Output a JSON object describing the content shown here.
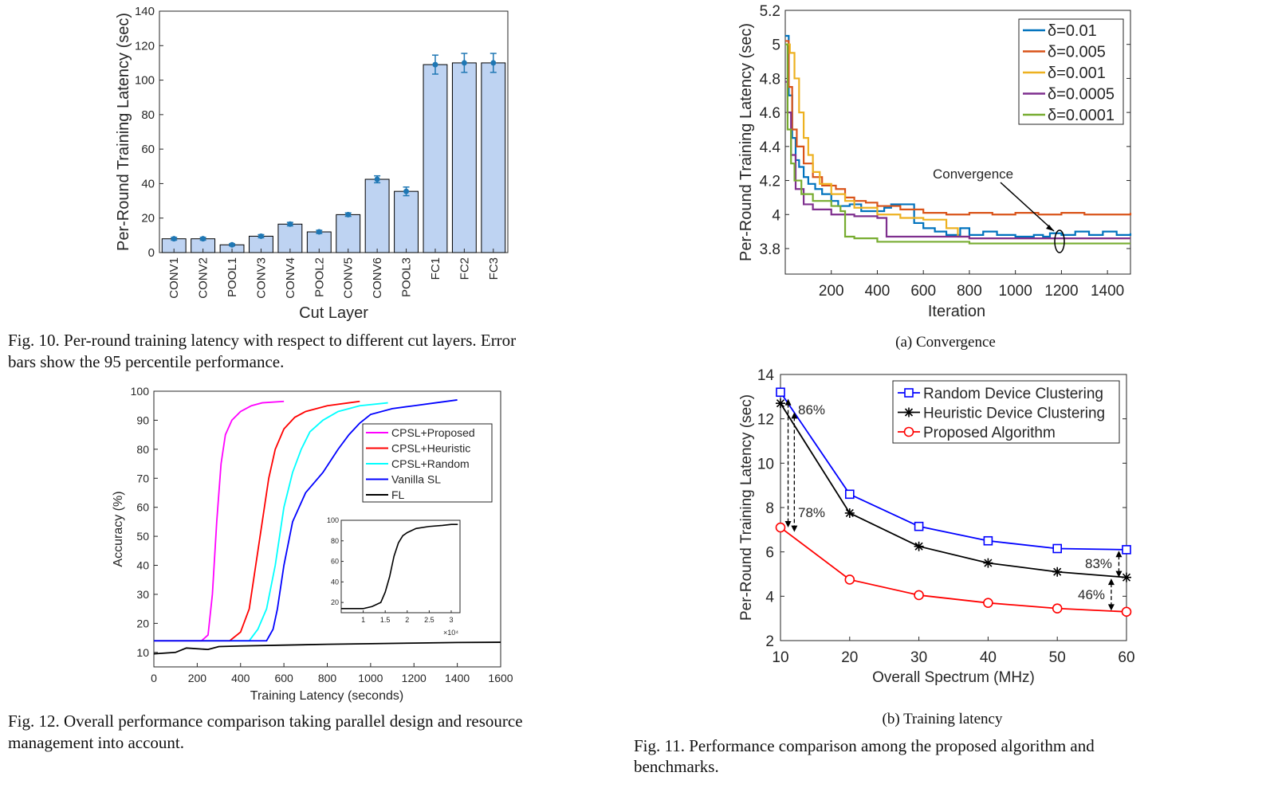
{
  "captions": {
    "fig10": [
      "Fig. 10.   Per-round training latency with respect to different cut layers. Error",
      "bars show the 95 percentile performance."
    ],
    "fig12": [
      "Fig. 12.   Overall performance comparison taking parallel design and resource",
      "management into account."
    ],
    "fig11a": "(a)  Convergence",
    "fig11b": "(b)  Training latency",
    "fig11": [
      "Fig.  11.      Performance  comparison  among  the  proposed  algorithm  and",
      "benchmarks."
    ]
  },
  "chart_data": [
    {
      "id": "fig10",
      "type": "bar",
      "xlabel": "Cut Layer",
      "ylabel": "Per-Round Training Latency (sec)",
      "ylim": [
        0,
        140
      ],
      "yticks": [
        0,
        20,
        40,
        60,
        80,
        100,
        120,
        140
      ],
      "categories": [
        "CONV1",
        "CONV2",
        "POOL1",
        "CONV3",
        "CONV4",
        "POOL2",
        "CONV5",
        "CONV6",
        "POOL3",
        "FC1",
        "FC2",
        "FC3"
      ],
      "values": [
        8,
        8,
        4.5,
        9.5,
        16.5,
        12,
        22,
        42.5,
        35.5,
        109,
        110,
        110
      ],
      "error": [
        0.8,
        0.8,
        0.6,
        0.9,
        1.0,
        0.9,
        1.0,
        2.0,
        2.5,
        5.5,
        5.5,
        5.5
      ],
      "bar_color": "#bed3f2",
      "error_color": "#1f77b4"
    },
    {
      "id": "fig11a",
      "type": "line",
      "xlabel": "Iteration",
      "ylabel": "Per-Round Training Latency (sec)",
      "xlim": [
        0,
        1500
      ],
      "ylim": [
        3.65,
        5.2
      ],
      "xticks": [
        200,
        400,
        600,
        800,
        1000,
        1200,
        1400
      ],
      "yticks": [
        3.8,
        4,
        4.2,
        4.4,
        4.6,
        4.8,
        5,
        5.2
      ],
      "annotation": "Convergence",
      "series": [
        {
          "name": "δ=0.01",
          "color": "#0072bd",
          "points": [
            [
              0,
              5.05
            ],
            [
              15,
              4.7
            ],
            [
              30,
              4.45
            ],
            [
              45,
              4.32
            ],
            [
              60,
              4.28
            ],
            [
              80,
              4.22
            ],
            [
              100,
              4.18
            ],
            [
              130,
              4.15
            ],
            [
              160,
              4.12
            ],
            [
              200,
              4.08
            ],
            [
              230,
              4.05
            ],
            [
              280,
              4.06
            ],
            [
              330,
              4.02
            ],
            [
              380,
              4.02
            ],
            [
              430,
              4.04
            ],
            [
              460,
              4.06
            ],
            [
              500,
              4.06
            ],
            [
              540,
              4.06
            ],
            [
              560,
              3.95
            ],
            [
              600,
              3.92
            ],
            [
              650,
              3.9
            ],
            [
              700,
              3.88
            ],
            [
              760,
              3.92
            ],
            [
              800,
              3.88
            ],
            [
              860,
              3.9
            ],
            [
              920,
              3.88
            ],
            [
              1000,
              3.87
            ],
            [
              1080,
              3.88
            ],
            [
              1120,
              3.87
            ],
            [
              1150,
              3.89
            ],
            [
              1200,
              3.88
            ],
            [
              1260,
              3.9
            ],
            [
              1320,
              3.88
            ],
            [
              1380,
              3.9
            ],
            [
              1440,
              3.88
            ],
            [
              1500,
              3.89
            ]
          ]
        },
        {
          "name": "δ=0.005",
          "color": "#d95319",
          "points": [
            [
              0,
              5.02
            ],
            [
              15,
              4.75
            ],
            [
              30,
              4.5
            ],
            [
              50,
              4.4
            ],
            [
              80,
              4.3
            ],
            [
              120,
              4.22
            ],
            [
              160,
              4.17
            ],
            [
              220,
              4.15
            ],
            [
              260,
              4.1
            ],
            [
              300,
              4.08
            ],
            [
              350,
              4.07
            ],
            [
              400,
              4.05
            ],
            [
              500,
              4.03
            ],
            [
              600,
              4.01
            ],
            [
              700,
              4.0
            ],
            [
              800,
              4.01
            ],
            [
              900,
              4.0
            ],
            [
              1000,
              4.01
            ],
            [
              1100,
              4.0
            ],
            [
              1200,
              4.01
            ],
            [
              1300,
              4.0
            ],
            [
              1400,
              4.0
            ],
            [
              1500,
              4.01
            ]
          ]
        },
        {
          "name": "δ=0.001",
          "color": "#edb120",
          "points": [
            [
              0,
              5.0
            ],
            [
              20,
              4.95
            ],
            [
              40,
              4.8
            ],
            [
              60,
              4.6
            ],
            [
              80,
              4.45
            ],
            [
              100,
              4.35
            ],
            [
              120,
              4.25
            ],
            [
              150,
              4.18
            ],
            [
              200,
              4.12
            ],
            [
              260,
              4.08
            ],
            [
              300,
              4.04
            ],
            [
              400,
              4.0
            ],
            [
              500,
              3.98
            ],
            [
              600,
              3.97
            ],
            [
              700,
              3.92
            ],
            [
              750,
              3.87
            ],
            [
              800,
              3.86
            ],
            [
              900,
              3.86
            ],
            [
              1000,
              3.86
            ],
            [
              1100,
              3.86
            ],
            [
              1200,
              3.86
            ],
            [
              1300,
              3.86
            ],
            [
              1500,
              3.86
            ]
          ]
        },
        {
          "name": "δ=0.0005",
          "color": "#7e2f8e",
          "points": [
            [
              0,
              4.78
            ],
            [
              10,
              4.6
            ],
            [
              25,
              4.35
            ],
            [
              45,
              4.15
            ],
            [
              80,
              4.06
            ],
            [
              120,
              4.03
            ],
            [
              200,
              4.0
            ],
            [
              300,
              3.99
            ],
            [
              400,
              3.98
            ],
            [
              440,
              3.87
            ],
            [
              500,
              3.87
            ],
            [
              600,
              3.87
            ],
            [
              800,
              3.86
            ],
            [
              1000,
              3.86
            ],
            [
              1200,
              3.86
            ],
            [
              1400,
              3.86
            ],
            [
              1500,
              3.86
            ]
          ]
        },
        {
          "name": "δ=0.0001",
          "color": "#77ac30",
          "points": [
            [
              0,
              5.0
            ],
            [
              10,
              4.5
            ],
            [
              25,
              4.3
            ],
            [
              40,
              4.2
            ],
            [
              70,
              4.12
            ],
            [
              120,
              4.08
            ],
            [
              200,
              4.05
            ],
            [
              240,
              4.02
            ],
            [
              260,
              3.87
            ],
            [
              300,
              3.86
            ],
            [
              400,
              3.84
            ],
            [
              600,
              3.84
            ],
            [
              800,
              3.83
            ],
            [
              1000,
              3.83
            ],
            [
              1200,
              3.83
            ],
            [
              1400,
              3.83
            ],
            [
              1500,
              3.83
            ]
          ]
        }
      ]
    },
    {
      "id": "fig12",
      "type": "line",
      "xlabel": "Training Latency (seconds)",
      "ylabel": "Accuracy (%)",
      "xlim": [
        0,
        1600
      ],
      "ylim": [
        5,
        100
      ],
      "xticks": [
        0,
        200,
        400,
        600,
        800,
        1000,
        1200,
        1400,
        1600
      ],
      "yticks": [
        10,
        20,
        30,
        40,
        50,
        60,
        70,
        80,
        90,
        100
      ],
      "series": [
        {
          "name": "CPSL+Proposed",
          "color": "#ff00ff",
          "points": [
            [
              0,
              14
            ],
            [
              220,
              14
            ],
            [
              250,
              16
            ],
            [
              270,
              30
            ],
            [
              290,
              55
            ],
            [
              310,
              75
            ],
            [
              330,
              85
            ],
            [
              360,
              90
            ],
            [
              400,
              93
            ],
            [
              450,
              95
            ],
            [
              500,
              96
            ],
            [
              600,
              96.5
            ]
          ]
        },
        {
          "name": "CPSL+Heuristic",
          "color": "#ff0000",
          "points": [
            [
              0,
              14
            ],
            [
              350,
              14
            ],
            [
              400,
              17
            ],
            [
              440,
              25
            ],
            [
              470,
              40
            ],
            [
              500,
              55
            ],
            [
              530,
              70
            ],
            [
              560,
              80
            ],
            [
              600,
              87
            ],
            [
              650,
              91
            ],
            [
              700,
              93
            ],
            [
              800,
              95
            ],
            [
              900,
              96
            ],
            [
              950,
              96.5
            ]
          ]
        },
        {
          "name": "CPSL+Random",
          "color": "#00ffff",
          "points": [
            [
              0,
              14
            ],
            [
              440,
              14
            ],
            [
              480,
              18
            ],
            [
              520,
              25
            ],
            [
              560,
              40
            ],
            [
              600,
              60
            ],
            [
              640,
              72
            ],
            [
              680,
              80
            ],
            [
              720,
              86
            ],
            [
              780,
              90
            ],
            [
              850,
              93
            ],
            [
              950,
              95
            ],
            [
              1080,
              96
            ]
          ]
        },
        {
          "name": "Vanilla SL",
          "color": "#0000ff",
          "points": [
            [
              0,
              14
            ],
            [
              520,
              14
            ],
            [
              550,
              18
            ],
            [
              570,
              25
            ],
            [
              600,
              40
            ],
            [
              640,
              55
            ],
            [
              700,
              65
            ],
            [
              780,
              72
            ],
            [
              850,
              80
            ],
            [
              900,
              85
            ],
            [
              950,
              89
            ],
            [
              1000,
              92
            ],
            [
              1100,
              94
            ],
            [
              1200,
              95
            ],
            [
              1300,
              96
            ],
            [
              1400,
              97
            ]
          ]
        },
        {
          "name": "FL",
          "color": "#000000",
          "points": [
            [
              0,
              9.5
            ],
            [
              100,
              10
            ],
            [
              150,
              11.5
            ],
            [
              250,
              11
            ],
            [
              300,
              12
            ],
            [
              400,
              12.2
            ],
            [
              600,
              12.5
            ],
            [
              800,
              12.8
            ],
            [
              1000,
              13
            ],
            [
              1200,
              13.2
            ],
            [
              1400,
              13.4
            ],
            [
              1600,
              13.5
            ]
          ]
        }
      ],
      "inset": {
        "xlim": [
          0.5,
          3.2
        ],
        "ylim": [
          10,
          100
        ],
        "xticks": [
          1,
          1.5,
          2,
          2.5,
          3
        ],
        "yticks": [
          20,
          40,
          60,
          80,
          100
        ],
        "exponent": "×10⁴",
        "points": [
          [
            0.5,
            14
          ],
          [
            1.0,
            14
          ],
          [
            1.2,
            16
          ],
          [
            1.4,
            20
          ],
          [
            1.5,
            30
          ],
          [
            1.6,
            45
          ],
          [
            1.65,
            55
          ],
          [
            1.7,
            65
          ],
          [
            1.8,
            78
          ],
          [
            1.9,
            85
          ],
          [
            2.0,
            88
          ],
          [
            2.2,
            92
          ],
          [
            2.5,
            94
          ],
          [
            2.8,
            95
          ],
          [
            3.0,
            96
          ],
          [
            3.15,
            96
          ]
        ]
      }
    },
    {
      "id": "fig11b",
      "type": "line",
      "xlabel": "Overall Spectrum (MHz)",
      "ylabel": "Per-Round Training Latency (sec)",
      "xlim": [
        10,
        60
      ],
      "ylim": [
        2,
        14
      ],
      "xticks": [
        10,
        20,
        30,
        40,
        50,
        60
      ],
      "yticks": [
        2,
        4,
        6,
        8,
        10,
        12,
        14
      ],
      "x": [
        10,
        20,
        30,
        40,
        50,
        60
      ],
      "series": [
        {
          "name": "Random Device Clustering",
          "color": "#0000ff",
          "marker": "square",
          "values": [
            13.2,
            8.6,
            7.15,
            6.5,
            6.15,
            6.1
          ]
        },
        {
          "name": "Heuristic Device Clustering",
          "color": "#000000",
          "marker": "star",
          "values": [
            12.7,
            7.75,
            6.25,
            5.5,
            5.1,
            4.85
          ]
        },
        {
          "name": "Proposed Algorithm",
          "color": "#ff0000",
          "marker": "circle",
          "values": [
            7.1,
            4.75,
            4.05,
            3.7,
            3.45,
            3.3
          ]
        }
      ],
      "annotations": [
        "86%",
        "78%",
        "83%",
        "46%"
      ]
    }
  ]
}
